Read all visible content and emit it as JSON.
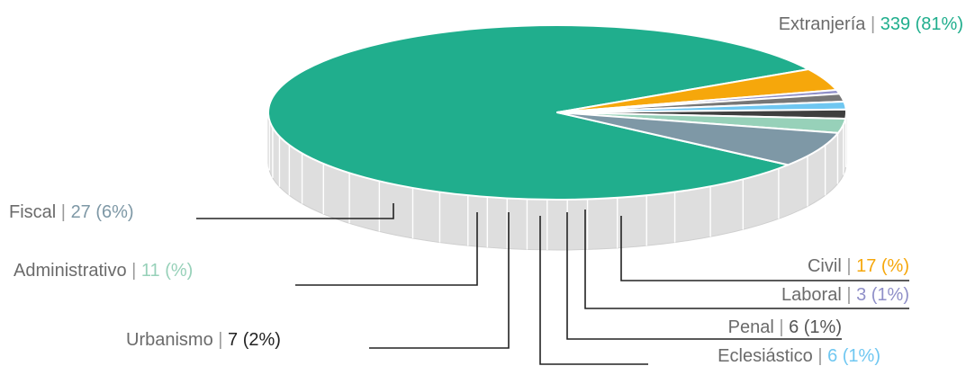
{
  "chart_data": {
    "type": "pie",
    "title": "",
    "style": "3d",
    "slices": [
      {
        "label": "Extranjería",
        "value": 339,
        "pct": "81%",
        "color": "#20ae8d",
        "pct_color": "#20ae8d"
      },
      {
        "label": "Civil",
        "value": 17,
        "pct": "%",
        "color": "#f6a70b",
        "pct_color": "#f6a70b"
      },
      {
        "label": "Laboral",
        "value": 3,
        "pct": "1%",
        "color": "#8f8fc8",
        "pct_color": "#8f8fc8"
      },
      {
        "label": "Penal",
        "value": 6,
        "pct": "1%",
        "color": "#777777",
        "pct_color": "#555555"
      },
      {
        "label": "Eclesiástico",
        "value": 6,
        "pct": "1%",
        "color": "#6fc7f1",
        "pct_color": "#6fc7f1"
      },
      {
        "label": "Urbanismo",
        "value": 7,
        "pct": "2%",
        "color": "#3f3f3f",
        "pct_color": "#222222"
      },
      {
        "label": "Administrativo",
        "value": 11,
        "pct": "%",
        "color": "#97d1b9",
        "pct_color": "#97d1b9"
      },
      {
        "label": "Fiscal",
        "value": 27,
        "pct": "6%",
        "color": "#7e98a6",
        "pct_color": "#7e98a6"
      }
    ],
    "separator": "|",
    "side_color": "#dedede"
  }
}
